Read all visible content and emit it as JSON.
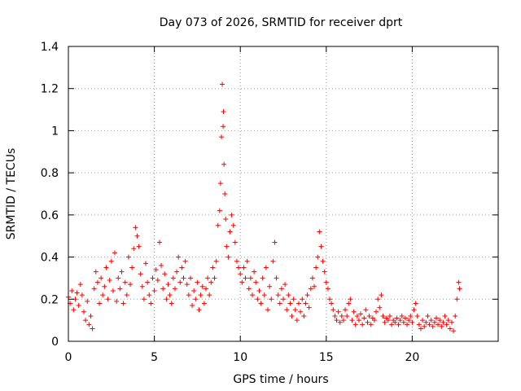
{
  "chart_data": {
    "type": "scatter",
    "title": "Day 073 of 2026, SRMTID for receiver dprt",
    "xlabel": "GPS time / hours",
    "ylabel": "SRMTID / TECUs",
    "xlim": [
      0,
      25
    ],
    "ylim": [
      0,
      1.4
    ],
    "xticks": [
      0,
      5,
      10,
      15,
      20
    ],
    "xtick_labels": [
      "0",
      "5",
      "10",
      "15",
      "20"
    ],
    "yticks": [
      0,
      0.2,
      0.4,
      0.6,
      0.8,
      1.0,
      1.2,
      1.4
    ],
    "ytick_labels": [
      "0",
      "0.2",
      "0.4",
      "0.6",
      "0.8",
      "1",
      "1.2",
      "1.4"
    ],
    "grid": true,
    "marker": "+",
    "color": "#ff0000",
    "series": [
      {
        "name": "SRMTID",
        "points": [
          [
            0.0,
            0.21
          ],
          [
            0.1,
            0.18
          ],
          [
            0.2,
            0.24
          ],
          [
            0.3,
            0.15
          ],
          [
            0.4,
            0.2
          ],
          [
            0.5,
            0.23
          ],
          [
            0.6,
            0.17
          ],
          [
            0.7,
            0.27
          ],
          [
            0.8,
            0.22
          ],
          [
            0.9,
            0.14
          ],
          [
            1.0,
            0.1
          ],
          [
            1.1,
            0.19
          ],
          [
            1.2,
            0.08
          ],
          [
            1.3,
            0.12
          ],
          [
            1.4,
            0.06
          ],
          [
            1.5,
            0.25
          ],
          [
            1.6,
            0.33
          ],
          [
            1.7,
            0.28
          ],
          [
            1.8,
            0.18
          ],
          [
            1.9,
            0.3
          ],
          [
            2.0,
            0.22
          ],
          [
            2.1,
            0.26
          ],
          [
            2.2,
            0.35
          ],
          [
            2.3,
            0.2
          ],
          [
            2.4,
            0.29
          ],
          [
            2.5,
            0.38
          ],
          [
            2.6,
            0.24
          ],
          [
            2.7,
            0.42
          ],
          [
            2.8,
            0.19
          ],
          [
            2.9,
            0.3
          ],
          [
            3.0,
            0.25
          ],
          [
            3.1,
            0.33
          ],
          [
            3.2,
            0.18
          ],
          [
            3.3,
            0.28
          ],
          [
            3.4,
            0.22
          ],
          [
            3.5,
            0.4
          ],
          [
            3.6,
            0.27
          ],
          [
            3.7,
            0.35
          ],
          [
            3.8,
            0.44
          ],
          [
            3.9,
            0.54
          ],
          [
            4.0,
            0.5
          ],
          [
            4.1,
            0.45
          ],
          [
            4.2,
            0.32
          ],
          [
            4.3,
            0.26
          ],
          [
            4.4,
            0.2
          ],
          [
            4.5,
            0.37
          ],
          [
            4.6,
            0.28
          ],
          [
            4.7,
            0.22
          ],
          [
            4.8,
            0.18
          ],
          [
            4.9,
            0.3
          ],
          [
            5.0,
            0.24
          ],
          [
            5.1,
            0.34
          ],
          [
            5.2,
            0.29
          ],
          [
            5.3,
            0.47
          ],
          [
            5.4,
            0.36
          ],
          [
            5.5,
            0.25
          ],
          [
            5.6,
            0.32
          ],
          [
            5.7,
            0.2
          ],
          [
            5.8,
            0.27
          ],
          [
            5.9,
            0.22
          ],
          [
            6.0,
            0.18
          ],
          [
            6.1,
            0.3
          ],
          [
            6.2,
            0.25
          ],
          [
            6.3,
            0.33
          ],
          [
            6.4,
            0.4
          ],
          [
            6.5,
            0.28
          ],
          [
            6.6,
            0.35
          ],
          [
            6.7,
            0.3
          ],
          [
            6.8,
            0.38
          ],
          [
            6.9,
            0.27
          ],
          [
            7.0,
            0.22
          ],
          [
            7.1,
            0.3
          ],
          [
            7.2,
            0.17
          ],
          [
            7.3,
            0.24
          ],
          [
            7.4,
            0.2
          ],
          [
            7.5,
            0.28
          ],
          [
            7.6,
            0.15
          ],
          [
            7.7,
            0.22
          ],
          [
            7.8,
            0.26
          ],
          [
            7.9,
            0.18
          ],
          [
            8.0,
            0.25
          ],
          [
            8.1,
            0.3
          ],
          [
            8.2,
            0.22
          ],
          [
            8.3,
            0.28
          ],
          [
            8.4,
            0.35
          ],
          [
            8.5,
            0.3
          ],
          [
            8.6,
            0.38
          ],
          [
            8.7,
            0.55
          ],
          [
            8.8,
            0.62
          ],
          [
            8.85,
            0.75
          ],
          [
            8.9,
            0.97
          ],
          [
            8.95,
            1.22
          ],
          [
            9.0,
            1.02
          ],
          [
            9.02,
            1.09
          ],
          [
            9.05,
            0.84
          ],
          [
            9.1,
            0.7
          ],
          [
            9.15,
            0.58
          ],
          [
            9.2,
            0.45
          ],
          [
            9.3,
            0.4
          ],
          [
            9.4,
            0.52
          ],
          [
            9.5,
            0.6
          ],
          [
            9.6,
            0.55
          ],
          [
            9.7,
            0.47
          ],
          [
            9.8,
            0.38
          ],
          [
            9.9,
            0.35
          ],
          [
            10.0,
            0.32
          ],
          [
            10.1,
            0.28
          ],
          [
            10.2,
            0.35
          ],
          [
            10.3,
            0.3
          ],
          [
            10.4,
            0.38
          ],
          [
            10.5,
            0.25
          ],
          [
            10.6,
            0.3
          ],
          [
            10.7,
            0.22
          ],
          [
            10.8,
            0.33
          ],
          [
            10.9,
            0.28
          ],
          [
            11.0,
            0.2
          ],
          [
            11.1,
            0.24
          ],
          [
            11.2,
            0.18
          ],
          [
            11.3,
            0.3
          ],
          [
            11.4,
            0.22
          ],
          [
            11.5,
            0.35
          ],
          [
            11.6,
            0.15
          ],
          [
            11.7,
            0.26
          ],
          [
            11.8,
            0.2
          ],
          [
            11.9,
            0.38
          ],
          [
            12.0,
            0.47
          ],
          [
            12.1,
            0.3
          ],
          [
            12.2,
            0.22
          ],
          [
            12.3,
            0.18
          ],
          [
            12.4,
            0.25
          ],
          [
            12.5,
            0.2
          ],
          [
            12.6,
            0.27
          ],
          [
            12.7,
            0.15
          ],
          [
            12.8,
            0.22
          ],
          [
            12.9,
            0.18
          ],
          [
            13.0,
            0.12
          ],
          [
            13.1,
            0.2
          ],
          [
            13.2,
            0.15
          ],
          [
            13.3,
            0.1
          ],
          [
            13.4,
            0.18
          ],
          [
            13.5,
            0.14
          ],
          [
            13.6,
            0.2
          ],
          [
            13.7,
            0.12
          ],
          [
            13.8,
            0.18
          ],
          [
            13.9,
            0.22
          ],
          [
            14.0,
            0.16
          ],
          [
            14.1,
            0.25
          ],
          [
            14.2,
            0.3
          ],
          [
            14.3,
            0.26
          ],
          [
            14.4,
            0.35
          ],
          [
            14.5,
            0.4
          ],
          [
            14.6,
            0.52
          ],
          [
            14.7,
            0.45
          ],
          [
            14.8,
            0.38
          ],
          [
            14.9,
            0.33
          ],
          [
            15.0,
            0.28
          ],
          [
            15.1,
            0.25
          ],
          [
            15.2,
            0.2
          ],
          [
            15.3,
            0.18
          ],
          [
            15.4,
            0.15
          ],
          [
            15.5,
            0.12
          ],
          [
            15.6,
            0.1
          ],
          [
            15.7,
            0.14
          ],
          [
            15.8,
            0.09
          ],
          [
            15.9,
            0.12
          ],
          [
            16.0,
            0.1
          ],
          [
            16.1,
            0.15
          ],
          [
            16.2,
            0.12
          ],
          [
            16.3,
            0.18
          ],
          [
            16.4,
            0.2
          ],
          [
            16.5,
            0.1
          ],
          [
            16.6,
            0.14
          ],
          [
            16.7,
            0.08
          ],
          [
            16.8,
            0.12
          ],
          [
            16.9,
            0.1
          ],
          [
            17.0,
            0.13
          ],
          [
            17.1,
            0.08
          ],
          [
            17.2,
            0.11
          ],
          [
            17.3,
            0.15
          ],
          [
            17.4,
            0.09
          ],
          [
            17.5,
            0.12
          ],
          [
            17.6,
            0.08
          ],
          [
            17.7,
            0.11
          ],
          [
            17.8,
            0.1
          ],
          [
            17.9,
            0.14
          ],
          [
            18.0,
            0.2
          ],
          [
            18.1,
            0.16
          ],
          [
            18.2,
            0.22
          ],
          [
            18.3,
            0.12
          ],
          [
            18.4,
            0.09
          ],
          [
            18.5,
            0.11
          ],
          [
            18.6,
            0.1
          ],
          [
            18.7,
            0.12
          ],
          [
            18.8,
            0.08
          ],
          [
            18.9,
            0.1
          ],
          [
            19.0,
            0.09
          ],
          [
            19.1,
            0.11
          ],
          [
            19.2,
            0.08
          ],
          [
            19.3,
            0.1
          ],
          [
            19.4,
            0.12
          ],
          [
            19.5,
            0.09
          ],
          [
            19.6,
            0.11
          ],
          [
            19.7,
            0.08
          ],
          [
            19.8,
            0.1
          ],
          [
            19.9,
            0.12
          ],
          [
            20.0,
            0.09
          ],
          [
            20.1,
            0.15
          ],
          [
            20.2,
            0.18
          ],
          [
            20.3,
            0.12
          ],
          [
            20.4,
            0.08
          ],
          [
            20.5,
            0.06
          ],
          [
            20.6,
            0.1
          ],
          [
            20.7,
            0.07
          ],
          [
            20.8,
            0.09
          ],
          [
            20.9,
            0.12
          ],
          [
            21.0,
            0.08
          ],
          [
            21.1,
            0.1
          ],
          [
            21.2,
            0.07
          ],
          [
            21.3,
            0.09
          ],
          [
            21.4,
            0.11
          ],
          [
            21.5,
            0.08
          ],
          [
            21.6,
            0.1
          ],
          [
            21.7,
            0.07
          ],
          [
            21.8,
            0.09
          ],
          [
            21.9,
            0.12
          ],
          [
            22.0,
            0.08
          ],
          [
            22.1,
            0.1
          ],
          [
            22.2,
            0.06
          ],
          [
            22.3,
            0.09
          ],
          [
            22.4,
            0.05
          ],
          [
            22.5,
            0.12
          ],
          [
            22.6,
            0.2
          ],
          [
            22.7,
            0.28
          ],
          [
            22.75,
            0.25
          ]
        ]
      }
    ]
  }
}
